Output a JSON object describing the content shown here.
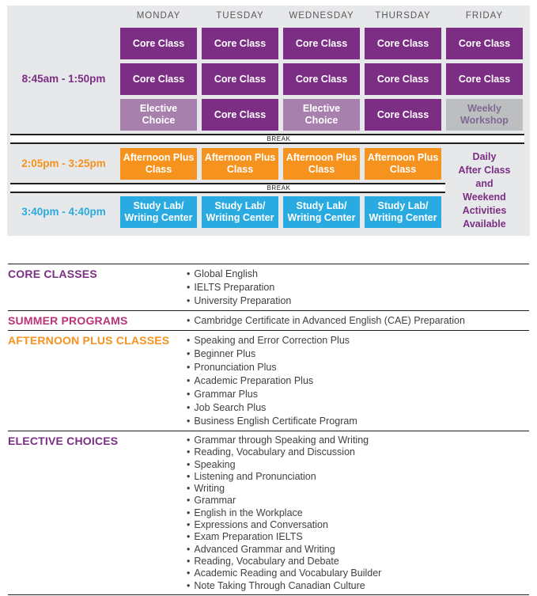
{
  "palette": {
    "board_background": "#E7E8E9",
    "core_purple": "#7B2E83",
    "elective_light_purple": "#A780AE",
    "workshop_gray": "#BDBEC0",
    "workshop_text_purple": "#7E6A94",
    "afternoon_orange": "#F6921E",
    "study_blue": "#29ABE2",
    "summer_magenta": "#B93377",
    "day_header_gray": "#58595B",
    "body_text": "#414042",
    "line_black": "#1E1E1E"
  },
  "schedule": {
    "days": [
      "MONDAY",
      "TUESDAY",
      "WEDNESDAY",
      "THURSDAY",
      "FRIDAY"
    ],
    "times": {
      "morning": "8:45am - 1:50pm",
      "afternoon": "2:05pm - 3:25pm",
      "evening": "3:40pm - 4:40pm"
    },
    "break_label": "BREAK",
    "cell_labels": {
      "core": [
        "Core Class"
      ],
      "elective": [
        "Elective",
        "Choice"
      ],
      "workshop": [
        "Weekly",
        "Workshop"
      ],
      "afternoon": [
        "Afternoon Plus",
        "Class"
      ],
      "study": [
        "Study Lab/",
        "Writing Center"
      ]
    },
    "morning_rows": [
      [
        "core",
        "core",
        "core",
        "core",
        "core"
      ],
      [
        "core",
        "core",
        "core",
        "core",
        "core"
      ],
      [
        "elective",
        "core",
        "elective",
        "core",
        "workshop"
      ]
    ],
    "afternoon_row": [
      "afternoon",
      "afternoon",
      "afternoon",
      "afternoon"
    ],
    "evening_row": [
      "study",
      "study",
      "study",
      "study"
    ],
    "friday_note_lines": [
      "Daily",
      "After Class",
      "and",
      "Weekend",
      "Activities",
      "Available"
    ]
  },
  "legend": {
    "bullet": "•",
    "sections": [
      {
        "title": "CORE CLASSES",
        "color": "#7B2E83",
        "items": [
          "Global English",
          "IELTS Preparation",
          "University Preparation"
        ]
      },
      {
        "title": "SUMMER PROGRAMS",
        "color": "#B93377",
        "items": [
          "Cambridge Certificate in Advanced English (CAE) Preparation"
        ]
      },
      {
        "title": "AFTERNOON PLUS CLASSES",
        "color": "#F6921E",
        "items": [
          "Speaking and Error Correction Plus",
          "Beginner Plus",
          "Pronunciation Plus",
          "Academic Preparation Plus",
          "Grammar Plus",
          "Job Search Plus",
          "Business English Certificate Program"
        ]
      },
      {
        "title": "ELECTIVE CHOICES",
        "color": "#7B2E83",
        "items": [
          "Grammar through Speaking and Writing",
          "Reading, Vocabulary and Discussion",
          "Speaking",
          "Listening and Pronunciation",
          "Writing",
          "Grammar",
          "English in the Workplace",
          "Expressions and Conversation",
          "Exam Preparation IELTS",
          "Advanced Grammar and Writing",
          "Reading, Vocabulary and Debate",
          "Academic Reading and Vocabulary Builder",
          "Note Taking Through Canadian Culture"
        ]
      }
    ]
  }
}
